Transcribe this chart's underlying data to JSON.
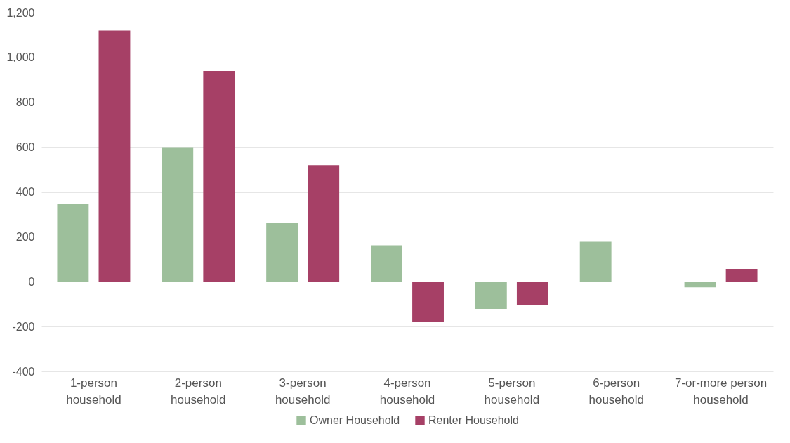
{
  "chart_data": {
    "type": "bar",
    "categories": [
      "1-person household",
      "2-person household",
      "3-person household",
      "4-person household",
      "5-person household",
      "6-person household",
      "7-or-more person household"
    ],
    "series": [
      {
        "name": "Owner Household",
        "color": "#9dbf9b",
        "values": [
          345,
          597,
          263,
          162,
          -121,
          181,
          -25
        ]
      },
      {
        "name": "Renter Household",
        "color": "#a64066",
        "values": [
          1120,
          940,
          520,
          -178,
          -105,
          0,
          57
        ]
      }
    ],
    "ylim": [
      -400,
      1200
    ],
    "yticks": [
      -400,
      -200,
      0,
      200,
      400,
      600,
      800,
      {
        "value": 1000,
        "label": "1,000"
      },
      {
        "value": 1200,
        "label": "1,200"
      }
    ],
    "grid": "y",
    "legend": "bottom"
  }
}
